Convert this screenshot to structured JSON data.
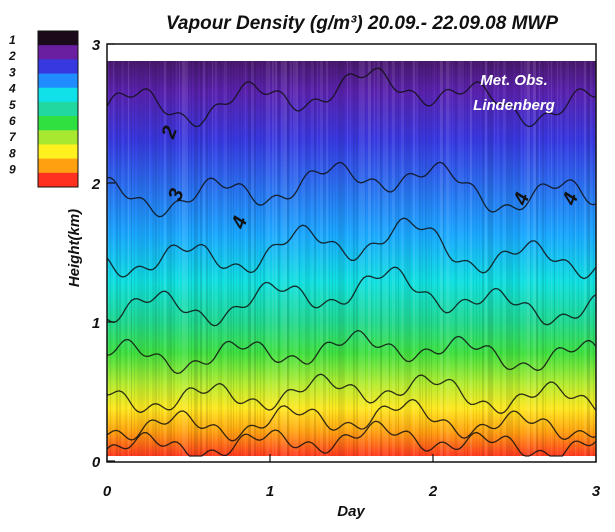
{
  "chart_data": {
    "type": "heatmap",
    "title": "Vapour Density (g/m³) 20.09.- 22.09.08 MWP",
    "xlabel": "Day",
    "ylabel": "Height(km)",
    "xlim": [
      0,
      3
    ],
    "ylim": [
      0,
      3
    ],
    "x_ticks": [
      "0",
      "1",
      "2",
      "3"
    ],
    "y_ticks": [
      "0",
      "1",
      "2",
      "3"
    ],
    "colorbar": {
      "levels": [
        "1",
        "2",
        "3",
        "4",
        "5",
        "6",
        "7",
        "8",
        "9"
      ],
      "colors": [
        "#1a0a1a",
        "#6a1ea0",
        "#3838e0",
        "#1f8cff",
        "#10e0e8",
        "#20d8a0",
        "#30e040",
        "#a8e830",
        "#fff020",
        "#ffa010",
        "#ff3020"
      ]
    },
    "annotation": [
      "Met. Obs.",
      "Lindenberg"
    ],
    "contour_labels": [
      {
        "text": "2",
        "x": 0.42,
        "y": 2.35
      },
      {
        "text": "3",
        "x": 0.46,
        "y": 1.9
      },
      {
        "text": "4",
        "x": 0.85,
        "y": 1.7
      },
      {
        "text": "4",
        "x": 2.58,
        "y": 1.87
      },
      {
        "text": "4",
        "x": 2.88,
        "y": 1.87
      }
    ]
  }
}
